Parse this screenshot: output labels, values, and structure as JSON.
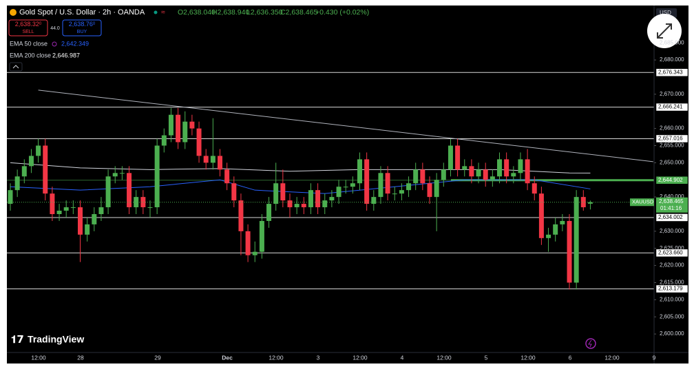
{
  "chart_data": {
    "type": "candlestick",
    "symbol_title": "Gold Spot / U.S. Dollar · 2h · OANDA",
    "ohlc_header": [
      "O2,638.040",
      "H2,638.940",
      "L2,636.350",
      "C2,638.465",
      "+0.430 (+0.02%)"
    ],
    "sell": {
      "price": "2,638.32",
      "price_sup": "0",
      "label": "SELL"
    },
    "spread": "44.0",
    "buy": {
      "price": "2,638.76",
      "price_sup": "0",
      "label": "BUY"
    },
    "currency": "USD",
    "symbol": "XAUUSD",
    "last_price": 2638.465,
    "last_price_label": "2,638.465",
    "countdown": "01:41:16",
    "brand": "TradingView",
    "xtick_labels": [
      "12:00",
      "28",
      "29",
      "Dec",
      "12:00",
      "3",
      "12:00",
      "4",
      "12:00",
      "5",
      "12:00",
      "6",
      "12:00",
      "9"
    ],
    "up_color": "#4caf50",
    "down_color": "#f23645",
    "open": [
      2638,
      2642,
      2646,
      2649,
      2652,
      2655,
      2641,
      2635,
      2636,
      2637,
      2637,
      2629,
      2632,
      2635,
      2637,
      2646,
      2647,
      2647,
      2637,
      2640,
      2637,
      2637,
      2655,
      2658,
      2664,
      2656,
      2662,
      2660,
      2652,
      2650,
      2652,
      2648,
      2644,
      2639,
      2630,
      2623,
      2624,
      2633,
      2638,
      2644,
      2639,
      2637,
      2638,
      2637,
      2642,
      2637,
      2639,
      2640,
      2643,
      2643,
      2644,
      2651,
      2638,
      2640,
      2647,
      2641,
      2641,
      2642,
      2644,
      2648,
      2644,
      2640,
      2645,
      2648,
      2655,
      2648,
      2649,
      2646,
      2648,
      2645,
      2646,
      2651,
      2646,
      2647,
      2651,
      2644,
      2641,
      2628,
      2629,
      2632,
      2633,
      2615,
      2640,
      2638.04
    ],
    "high": [
      2644,
      2648,
      2651,
      2654,
      2657,
      2657,
      2643,
      2638,
      2639,
      2639,
      2639,
      2634,
      2637,
      2640,
      2648,
      2649,
      2649,
      2649,
      2642,
      2642,
      2639,
      2657,
      2660,
      2666,
      2666,
      2665,
      2664,
      2662,
      2654,
      2663,
      2654,
      2650,
      2646,
      2641,
      2632,
      2627,
      2635,
      2640,
      2650,
      2648,
      2641,
      2640,
      2640,
      2644,
      2644,
      2641,
      2642,
      2645,
      2645,
      2646,
      2653,
      2653,
      2642,
      2649,
      2649,
      2643,
      2644,
      2646,
      2650,
      2650,
      2646,
      2647,
      2650,
      2657,
      2657,
      2651,
      2651,
      2650,
      2650,
      2648,
      2653,
      2653,
      2649,
      2653,
      2654,
      2646,
      2643,
      2631,
      2634,
      2635,
      2635,
      2642,
      2642,
      2638.94
    ],
    "low": [
      2636,
      2640,
      2644,
      2647,
      2650,
      2639,
      2633,
      2633,
      2634,
      2635,
      2621,
      2627,
      2630,
      2633,
      2635,
      2644,
      2645,
      2635,
      2635,
      2635,
      2634,
      2635,
      2653,
      2656,
      2654,
      2654,
      2658,
      2650,
      2648,
      2648,
      2646,
      2642,
      2637,
      2623,
      2621,
      2621,
      2622,
      2631,
      2636,
      2637,
      2634,
      2635,
      2635,
      2635,
      2635,
      2635,
      2637,
      2638,
      2641,
      2641,
      2642,
      2636,
      2636,
      2638,
      2639,
      2639,
      2639,
      2640,
      2642,
      2642,
      2638,
      2630,
      2643,
      2646,
      2646,
      2646,
      2644,
      2644,
      2643,
      2643,
      2644,
      2644,
      2644,
      2645,
      2642,
      2639,
      2626,
      2624,
      2627,
      2630,
      2613,
      2613,
      2636,
      2636.35
    ],
    "close": [
      2642,
      2646,
      2649,
      2652,
      2655,
      2641,
      2635,
      2636,
      2637,
      2637,
      2629,
      2632,
      2635,
      2637,
      2646,
      2647,
      2647,
      2637,
      2640,
      2637,
      2637,
      2655,
      2658,
      2664,
      2656,
      2662,
      2660,
      2652,
      2650,
      2652,
      2648,
      2644,
      2639,
      2630,
      2623,
      2624,
      2633,
      2638,
      2644,
      2639,
      2637,
      2638,
      2637,
      2642,
      2637,
      2639,
      2640,
      2643,
      2643,
      2644,
      2651,
      2638,
      2640,
      2647,
      2641,
      2641,
      2642,
      2644,
      2648,
      2644,
      2640,
      2645,
      2648,
      2655,
      2648,
      2649,
      2646,
      2648,
      2645,
      2646,
      2651,
      2646,
      2647,
      2651,
      2644,
      2641,
      2628,
      2629,
      2632,
      2633,
      2615,
      2640,
      2637,
      2638.465
    ],
    "indicators": [
      {
        "name": "EMA 50 close",
        "last_label": "2,642.349",
        "color": "#2962ff",
        "x": [
          0,
          10,
          20,
          30,
          35,
          45,
          55,
          65,
          75,
          83
        ],
        "values": [
          2643,
          2642,
          2643,
          2645,
          2642,
          2641,
          2643,
          2645,
          2645,
          2642.349
        ]
      },
      {
        "name": "EMA 200 close",
        "last_label": "2,646.987",
        "color": "#d1d4dc",
        "x": [
          0,
          10,
          20,
          30,
          40,
          50,
          60,
          70,
          80,
          83
        ],
        "values": [
          2650,
          2648.5,
          2648,
          2648.3,
          2647.5,
          2648,
          2648,
          2648,
          2647,
          2646.987
        ]
      }
    ],
    "trendline": {
      "color": "#b2b5be",
      "x": [
        4,
        92
      ],
      "values": [
        2671.2,
        2650.3
      ]
    },
    "levels": [
      {
        "value": 2676.343,
        "label": "2,676.343"
      },
      {
        "value": 2666.241,
        "label": "2,666.241"
      },
      {
        "value": 2657.016,
        "label": "2,657.016"
      },
      {
        "value": 2644.902,
        "label": "2,644.902"
      },
      {
        "value": 2634.002,
        "label": "2,634.002"
      },
      {
        "value": 2623.66,
        "label": "2,623.660"
      },
      {
        "value": 2613.179,
        "label": "2,613.179"
      }
    ],
    "level_colors": [
      "#ffffff",
      "#ffffff",
      "#ffffff",
      "#4caf50",
      "#ffffff",
      "#ffffff",
      "#ffffff"
    ],
    "ylim": [
      2594.6,
      2695.9
    ],
    "yticks": [
      {
        "value": 2600,
        "label": "2,600.000"
      },
      {
        "value": 2605,
        "label": "2,605.000"
      },
      {
        "value": 2610,
        "label": "2,610.000"
      },
      {
        "value": 2615,
        "label": "2,615.000"
      },
      {
        "value": 2620,
        "label": "2,620.000"
      },
      {
        "value": 2625,
        "label": "2,625.000"
      },
      {
        "value": 2630,
        "label": "2,630.000"
      },
      {
        "value": 2640,
        "label": "2,640.000"
      },
      {
        "value": 2650,
        "label": "2,650.000"
      },
      {
        "value": 2655,
        "label": "2,655.000"
      },
      {
        "value": 2660,
        "label": "2,660.000"
      },
      {
        "value": 2670,
        "label": "2,670.000"
      },
      {
        "value": 2680,
        "label": "2,680.000"
      },
      {
        "value": 2685,
        "label": "2,685.000"
      }
    ]
  }
}
